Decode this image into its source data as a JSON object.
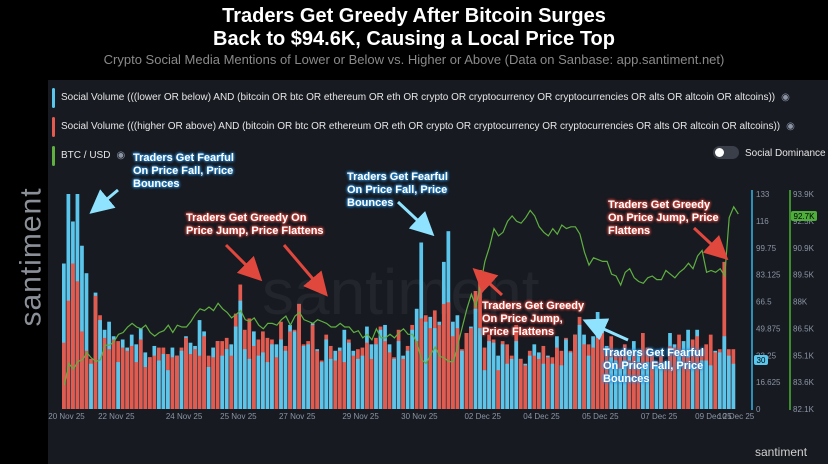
{
  "header": {
    "title_line1": "Traders Get Greedy After Bitcoin Surges",
    "title_line2": "Back to $94.6K, Causing a Local Price Top",
    "subtitle": "Crypto Social Media Mentions of Lower or Below vs. Higher or Above (Data on Sanbase: app.santiment.net)"
  },
  "legend": {
    "lower_label": "Social Volume (((lower OR below) AND (bitcoin OR btc OR ethereum OR eth OR crypto OR cryptocurrency OR cryptocurrencies OR alts OR altcoin OR altcoins))",
    "higher_label": "Social Volume (((higher OR above) AND (bitcoin OR btc OR ethereum OR eth OR crypto OR cryptocurrency OR cryptocurrencies OR alts OR altcoin OR altcoins))",
    "btc_label": "BTC / USD",
    "dominance_label": "Social Dominance",
    "eye_icon": "eye-icon"
  },
  "branding": {
    "side_watermark": "santiment",
    "center_watermark": "santiment",
    "footer_logo": "santiment"
  },
  "colors": {
    "lower": "#5bc6ec",
    "higher": "#e35a4f",
    "btc": "#5fb041",
    "blue_arrow": "#8fe3ff",
    "red_arrow": "#e0473d"
  },
  "annotations": [
    {
      "text": [
        "Traders Get Fearful",
        "On Price Fall, Price",
        "Bounces"
      ],
      "color": "blue"
    },
    {
      "text": [
        "Traders Get Greedy On",
        "Price Jump, Price Flattens"
      ],
      "color": "red"
    },
    {
      "text": [
        "Traders Get Fearful",
        "On Price Fall, Price",
        "Bounces"
      ],
      "color": "blue"
    },
    {
      "text": [
        "Traders Get Greedy",
        "On Price Jump,",
        "Price Flattens"
      ],
      "color": "red"
    },
    {
      "text": [
        "Traders Get Fearful",
        "On Price Fall, Price",
        "Bounces"
      ],
      "color": "blue"
    },
    {
      "text": [
        "Traders Get Greedy",
        "On Price Jump, Price",
        "Flattens"
      ],
      "color": "red"
    }
  ],
  "chart_data": {
    "type": "bar",
    "x_tick_labels": [
      "20 Nov 25",
      "22 Nov 25",
      "24 Nov 25",
      "25 Nov 25",
      "27 Nov 25",
      "29 Nov 25",
      "30 Nov 25",
      "02 Dec 25",
      "04 Dec 25",
      "05 Dec 25",
      "07 Dec 25",
      "09 Dec 25",
      "10 Dec 25"
    ],
    "x_tick_index": [
      1,
      12,
      27,
      39,
      52,
      66,
      79,
      93,
      106,
      119,
      132,
      144,
      149
    ],
    "y_left_ticks": [
      "133",
      "116",
      "99.75",
      "83.125",
      "66.5",
      "49.875",
      "33.25",
      "16.625",
      "0"
    ],
    "y_left_range": [
      0,
      133
    ],
    "y_right_ticks": [
      "93.9K",
      "92.5K",
      "90.9K",
      "89.5K",
      "88K",
      "86.5K",
      "85.1K",
      "83.6K",
      "82.1K"
    ],
    "y_right_range": [
      82100,
      93900
    ],
    "current_volume_badge": "30",
    "current_price_badge": "92.7K",
    "series": [
      {
        "name": "Social Volume (lower OR below)",
        "color": "#5bc6ec",
        "values": [
          90,
          133,
          116,
          133,
          101,
          84,
          28,
          72,
          55,
          49,
          54,
          45,
          29,
          43,
          38,
          46,
          40,
          50,
          35,
          32,
          39,
          30,
          34,
          24,
          38,
          33,
          36,
          45,
          41,
          39,
          55,
          48,
          26,
          38,
          42,
          33,
          37,
          40,
          51,
          67,
          37,
          31,
          48,
          33,
          35,
          29,
          40,
          40,
          43,
          36,
          52,
          48,
          65,
          39,
          40,
          53,
          37,
          29,
          43,
          31,
          36,
          38,
          49,
          41,
          36,
          31,
          33,
          51,
          40,
          40,
          49,
          52,
          40,
          31,
          42,
          33,
          36,
          49,
          62,
          103,
          54,
          57,
          50,
          54,
          91,
          110,
          54,
          58,
          36,
          47,
          51,
          62,
          50,
          24,
          42,
          41,
          33,
          40,
          28,
          31,
          42,
          31,
          28,
          33,
          40,
          35,
          28,
          33,
          28,
          45,
          27,
          43,
          35,
          46,
          52,
          46,
          33,
          45,
          60,
          51,
          39,
          32,
          30,
          25,
          30,
          33,
          42,
          36,
          27,
          29,
          34,
          27,
          25,
          29,
          47,
          40,
          33,
          42,
          49,
          27,
          49,
          30,
          30,
          27,
          36,
          35,
          45,
          33,
          28
        ]
      },
      {
        "name": "Social Volume (higher OR above)",
        "color": "#e35a4f",
        "values": [
          41,
          67,
          90,
          79,
          48,
          36,
          31,
          70,
          58,
          44,
          37,
          43,
          42,
          38,
          36,
          39,
          29,
          43,
          26,
          32,
          33,
          38,
          38,
          34,
          32,
          33,
          38,
          44,
          34,
          37,
          33,
          45,
          33,
          32,
          42,
          42,
          44,
          33,
          59,
          77,
          49,
          56,
          39,
          43,
          48,
          44,
          43,
          32,
          54,
          39,
          48,
          49,
          65,
          40,
          42,
          52,
          36,
          30,
          46,
          39,
          30,
          36,
          29,
          43,
          33,
          37,
          38,
          41,
          31,
          44,
          51,
          42,
          35,
          32,
          49,
          31,
          39,
          52,
          42,
          56,
          58,
          50,
          61,
          52,
          65,
          66,
          45,
          50,
          37,
          47,
          50,
          73,
          86,
          38,
          46,
          43,
          24,
          42,
          40,
          33,
          52,
          31,
          27,
          36,
          33,
          31,
          39,
          32,
          32,
          38,
          36,
          44,
          36,
          46,
          57,
          40,
          40,
          38,
          44,
          47,
          35,
          45,
          34,
          35,
          40,
          30,
          36,
          29,
          47,
          38,
          33,
          29,
          33,
          27,
          39,
          38,
          46,
          34,
          32,
          43,
          45,
          37,
          40,
          46,
          35,
          37,
          91,
          37,
          37
        ]
      },
      {
        "name": "BTC / USD",
        "color": "#5fb041",
        "values": [
          83400,
          84600,
          84300,
          84700,
          84800,
          85200,
          84900,
          84700,
          84800,
          85600,
          85600,
          85800,
          86200,
          86300,
          86600,
          86800,
          86600,
          86500,
          86700,
          86300,
          86100,
          86300,
          86400,
          86700,
          86300,
          86700,
          86600,
          86600,
          86900,
          87300,
          87600,
          87500,
          87700,
          87500,
          87900,
          87600,
          87400,
          87100,
          87300,
          87500,
          87000,
          86900,
          87100,
          86700,
          86500,
          86800,
          86800,
          86700,
          87000,
          87200,
          86700,
          87200,
          87400,
          87000,
          86900,
          86800,
          87000,
          86900,
          86800,
          86600,
          86600,
          86800,
          86600,
          86600,
          86300,
          86400,
          86000,
          86200,
          85900,
          86500,
          86000,
          86000,
          86200,
          86000,
          86300,
          86500,
          86200,
          86200,
          85700,
          84800,
          84600,
          85100,
          85500,
          85000,
          84900,
          84700,
          84700,
          85600,
          86600,
          87600,
          88400,
          87700,
          88900,
          90200,
          91000,
          92000,
          91600,
          91800,
          92400,
          92700,
          92400,
          92300,
          92600,
          93000,
          92700,
          92100,
          91800,
          91600,
          92000,
          91700,
          92200,
          92000,
          92100,
          92100,
          91700,
          90700,
          90000,
          90400,
          90300,
          90200,
          90200,
          89500,
          89400,
          88900,
          89600,
          89800,
          89300,
          89100,
          89000,
          89300,
          89400,
          89200,
          89200,
          89700,
          89500,
          89300,
          89600,
          89800,
          90100,
          89800,
          90500,
          90800,
          89600,
          89700,
          89600,
          89800,
          89400,
          92600,
          93200,
          92800
        ]
      }
    ]
  }
}
